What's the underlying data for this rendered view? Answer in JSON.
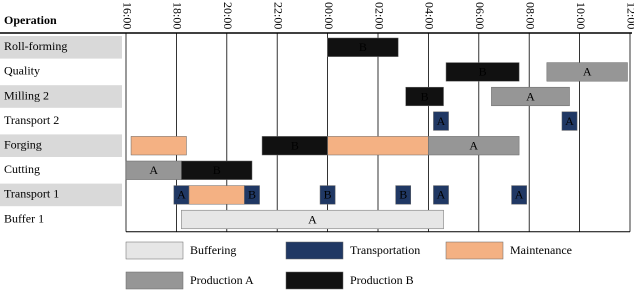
{
  "chart_data": {
    "type": "gantt",
    "header": "Operation",
    "xlim": [
      16,
      36
    ],
    "xticks": [
      {
        "value": 16,
        "label": "16:00"
      },
      {
        "value": 18,
        "label": "18:00"
      },
      {
        "value": 20,
        "label": "20:00"
      },
      {
        "value": 22,
        "label": "22:00"
      },
      {
        "value": 24,
        "label": "00:00"
      },
      {
        "value": 26,
        "label": "02:00"
      },
      {
        "value": 28,
        "label": "04:00"
      },
      {
        "value": 30,
        "label": "06:00"
      },
      {
        "value": 32,
        "label": "08:00"
      },
      {
        "value": 34,
        "label": "10:00"
      },
      {
        "value": 36,
        "label": "12:00"
      }
    ],
    "grid": true,
    "row_shading": true,
    "series": [
      {
        "name": "Buffering",
        "color": "#e6e6e6"
      },
      {
        "name": "Transportation",
        "color": "#203864"
      },
      {
        "name": "Maintenance",
        "color": "#f4b183"
      },
      {
        "name": "Production A",
        "color": "#969696"
      },
      {
        "name": "Production B",
        "color": "#111111"
      }
    ],
    "rows": [
      {
        "name": "Roll-forming",
        "tasks": [
          {
            "kind": "Production B",
            "start": 24,
            "end": 26.8,
            "label": "B"
          }
        ]
      },
      {
        "name": "Quality",
        "tasks": [
          {
            "kind": "Production B",
            "start": 28.7,
            "end": 31.6,
            "label": "B"
          },
          {
            "kind": "Production A",
            "start": 32.7,
            "end": 35.9,
            "label": "A"
          }
        ]
      },
      {
        "name": "Milling 2",
        "tasks": [
          {
            "kind": "Production B",
            "start": 27.1,
            "end": 28.6,
            "label": "B"
          },
          {
            "kind": "Production A",
            "start": 30.5,
            "end": 33.6,
            "label": "A"
          }
        ]
      },
      {
        "name": "Transport 2",
        "tasks": [
          {
            "kind": "Transportation",
            "start": 28.2,
            "end": 28.8,
            "label": "A"
          },
          {
            "kind": "Transportation",
            "start": 33.3,
            "end": 33.9,
            "label": "A"
          }
        ]
      },
      {
        "name": "Forging",
        "tasks": [
          {
            "kind": "Maintenance",
            "start": 16.2,
            "end": 18.4
          },
          {
            "kind": "Production B",
            "start": 21.4,
            "end": 24,
            "label": "B"
          },
          {
            "kind": "Maintenance",
            "start": 24,
            "end": 28
          },
          {
            "kind": "Production A",
            "start": 28,
            "end": 31.6,
            "label": "A"
          }
        ]
      },
      {
        "name": "Cutting",
        "tasks": [
          {
            "kind": "Production A",
            "start": 16,
            "end": 18.2,
            "label": "A"
          },
          {
            "kind": "Production B",
            "start": 18.2,
            "end": 21,
            "label": "B"
          }
        ]
      },
      {
        "name": "Transport 1",
        "tasks": [
          {
            "kind": "Transportation",
            "start": 17.9,
            "end": 18.5,
            "label": "A"
          },
          {
            "kind": "Maintenance",
            "start": 18.5,
            "end": 20.7
          },
          {
            "kind": "Transportation",
            "start": 20.7,
            "end": 21.3,
            "label": "B"
          },
          {
            "kind": "Transportation",
            "start": 23.7,
            "end": 24.3,
            "label": "B"
          },
          {
            "kind": "Transportation",
            "start": 26.7,
            "end": 27.3,
            "label": "B"
          },
          {
            "kind": "Transportation",
            "start": 28.2,
            "end": 28.8,
            "label": "A"
          },
          {
            "kind": "Transportation",
            "start": 31.3,
            "end": 31.9,
            "label": "A"
          }
        ]
      },
      {
        "name": "Buffer 1",
        "tasks": [
          {
            "kind": "Buffering",
            "start": 18.2,
            "end": 28.6,
            "label": "A"
          }
        ]
      }
    ]
  }
}
